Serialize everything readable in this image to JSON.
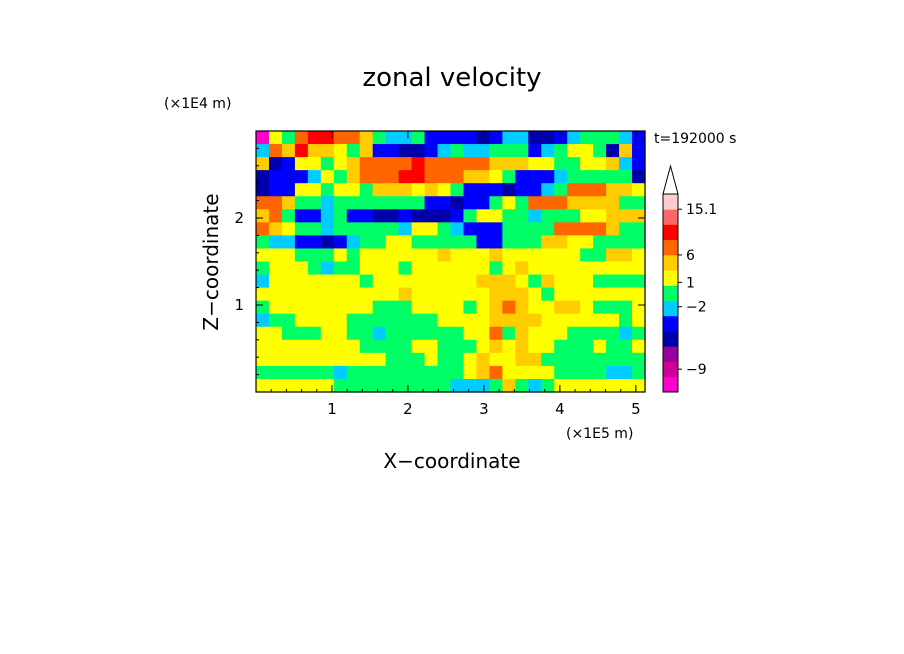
{
  "chart_data": {
    "type": "heatmap",
    "title": "zonal velocity",
    "xlabel": "X−coordinate",
    "ylabel": "Z−coordinate",
    "x_units": "(×1E5 m)",
    "y_units": "(×1E4 m)",
    "time_label": "t=192000 s",
    "xlim": [
      0,
      5.12
    ],
    "ylim": [
      0,
      3.0
    ],
    "xticks": [
      1,
      2,
      3,
      4,
      5
    ],
    "yticks": [
      1,
      2
    ],
    "colorbar": {
      "colors": [
        "#ff00cc",
        "#cc0099",
        "#990099",
        "#0000aa",
        "#0000ff",
        "#00ccff",
        "#00ff66",
        "#ffff00",
        "#ffcc00",
        "#ff6600",
        "#ff0000",
        "#ff6666",
        "#ffcccc"
      ],
      "labels": [
        {
          "value": "−9",
          "level": 1.5
        },
        {
          "value": "−2",
          "level": 5.6
        },
        {
          "value": "1",
          "level": 7.2
        },
        {
          "value": "6",
          "level": 9.0
        },
        {
          "value": "15.1",
          "level": 12.0
        }
      ],
      "extend": "max"
    },
    "field": [
      [
        0,
        7,
        6,
        9,
        10,
        10,
        9,
        9,
        8,
        6,
        5,
        5,
        6,
        4,
        4,
        4,
        4,
        3,
        4,
        5,
        5,
        3,
        3,
        4,
        5,
        6,
        6,
        6,
        5,
        4
      ],
      [
        5,
        9,
        8,
        10,
        8,
        8,
        7,
        6,
        8,
        4,
        4,
        3,
        3,
        4,
        5,
        6,
        5,
        5,
        6,
        6,
        6,
        4,
        5,
        6,
        7,
        7,
        6,
        3,
        8,
        4
      ],
      [
        8,
        3,
        4,
        7,
        7,
        6,
        7,
        8,
        9,
        9,
        9,
        9,
        10,
        9,
        9,
        9,
        9,
        9,
        8,
        8,
        8,
        7,
        7,
        6,
        6,
        7,
        7,
        8,
        5,
        4
      ],
      [
        3,
        4,
        4,
        4,
        5,
        7,
        6,
        8,
        9,
        9,
        9,
        10,
        10,
        9,
        9,
        9,
        8,
        8,
        7,
        6,
        4,
        4,
        4,
        5,
        6,
        6,
        6,
        6,
        6,
        3
      ],
      [
        3,
        4,
        4,
        7,
        7,
        6,
        7,
        7,
        6,
        8,
        8,
        8,
        7,
        8,
        7,
        6,
        4,
        4,
        4,
        3,
        4,
        4,
        5,
        6,
        9,
        9,
        9,
        8,
        8,
        7
      ],
      [
        9,
        9,
        8,
        6,
        6,
        5,
        6,
        6,
        6,
        6,
        6,
        6,
        6,
        4,
        4,
        3,
        4,
        4,
        6,
        7,
        6,
        9,
        9,
        9,
        8,
        8,
        8,
        8,
        6,
        6
      ],
      [
        8,
        9,
        6,
        4,
        4,
        5,
        6,
        4,
        4,
        3,
        3,
        4,
        3,
        3,
        3,
        4,
        6,
        7,
        7,
        6,
        6,
        5,
        6,
        6,
        6,
        7,
        7,
        8,
        8,
        8
      ],
      [
        9,
        8,
        7,
        6,
        6,
        5,
        6,
        6,
        6,
        6,
        6,
        5,
        7,
        7,
        6,
        5,
        4,
        4,
        4,
        6,
        6,
        6,
        6,
        9,
        9,
        9,
        9,
        8,
        6,
        6
      ],
      [
        6,
        5,
        5,
        4,
        4,
        3,
        4,
        5,
        6,
        6,
        7,
        7,
        6,
        6,
        6,
        6,
        6,
        4,
        4,
        6,
        6,
        6,
        8,
        8,
        7,
        7,
        6,
        6,
        6,
        6
      ],
      [
        7,
        7,
        7,
        6,
        6,
        6,
        7,
        6,
        7,
        7,
        7,
        7,
        7,
        7,
        8,
        7,
        7,
        7,
        8,
        7,
        7,
        7,
        7,
        7,
        7,
        6,
        6,
        8,
        8,
        7
      ],
      [
        6,
        7,
        7,
        7,
        6,
        5,
        6,
        6,
        7,
        7,
        7,
        6,
        7,
        7,
        7,
        7,
        7,
        7,
        6,
        7,
        8,
        7,
        7,
        7,
        7,
        7,
        7,
        7,
        7,
        7
      ],
      [
        5,
        7,
        7,
        7,
        7,
        7,
        7,
        7,
        6,
        7,
        7,
        7,
        7,
        7,
        7,
        7,
        7,
        8,
        8,
        8,
        7,
        6,
        8,
        7,
        7,
        7,
        6,
        6,
        6,
        6
      ],
      [
        7,
        7,
        7,
        7,
        7,
        7,
        7,
        7,
        7,
        7,
        7,
        8,
        7,
        7,
        7,
        7,
        7,
        7,
        8,
        8,
        8,
        7,
        6,
        7,
        7,
        7,
        7,
        7,
        7,
        7
      ],
      [
        6,
        7,
        7,
        7,
        7,
        7,
        7,
        7,
        7,
        6,
        6,
        6,
        7,
        7,
        7,
        7,
        6,
        7,
        8,
        9,
        8,
        7,
        7,
        8,
        8,
        7,
        6,
        6,
        6,
        7
      ],
      [
        5,
        6,
        6,
        7,
        7,
        7,
        7,
        6,
        6,
        6,
        6,
        6,
        6,
        6,
        7,
        7,
        7,
        7,
        8,
        8,
        8,
        8,
        7,
        7,
        7,
        7,
        7,
        7,
        6,
        7
      ],
      [
        7,
        7,
        6,
        6,
        6,
        7,
        7,
        6,
        6,
        5,
        6,
        6,
        6,
        6,
        6,
        6,
        7,
        7,
        9,
        6,
        8,
        7,
        7,
        7,
        6,
        6,
        6,
        6,
        5,
        6
      ],
      [
        7,
        7,
        7,
        7,
        7,
        7,
        7,
        7,
        6,
        6,
        6,
        6,
        7,
        7,
        6,
        6,
        6,
        7,
        8,
        7,
        8,
        7,
        7,
        6,
        6,
        6,
        7,
        6,
        6,
        7
      ],
      [
        7,
        7,
        7,
        7,
        7,
        7,
        7,
        7,
        7,
        7,
        6,
        6,
        6,
        7,
        6,
        6,
        7,
        8,
        7,
        7,
        8,
        8,
        6,
        6,
        6,
        6,
        6,
        6,
        6,
        6
      ],
      [
        6,
        6,
        6,
        6,
        6,
        6,
        5,
        6,
        6,
        6,
        6,
        6,
        6,
        6,
        6,
        6,
        7,
        8,
        9,
        7,
        7,
        7,
        7,
        6,
        6,
        6,
        6,
        5,
        5,
        6
      ],
      [
        7,
        7,
        7,
        7,
        7,
        7,
        6,
        6,
        6,
        6,
        6,
        6,
        6,
        6,
        6,
        5,
        5,
        5,
        6,
        8,
        6,
        5,
        6,
        7,
        7,
        7,
        7,
        7,
        7,
        7
      ]
    ]
  }
}
